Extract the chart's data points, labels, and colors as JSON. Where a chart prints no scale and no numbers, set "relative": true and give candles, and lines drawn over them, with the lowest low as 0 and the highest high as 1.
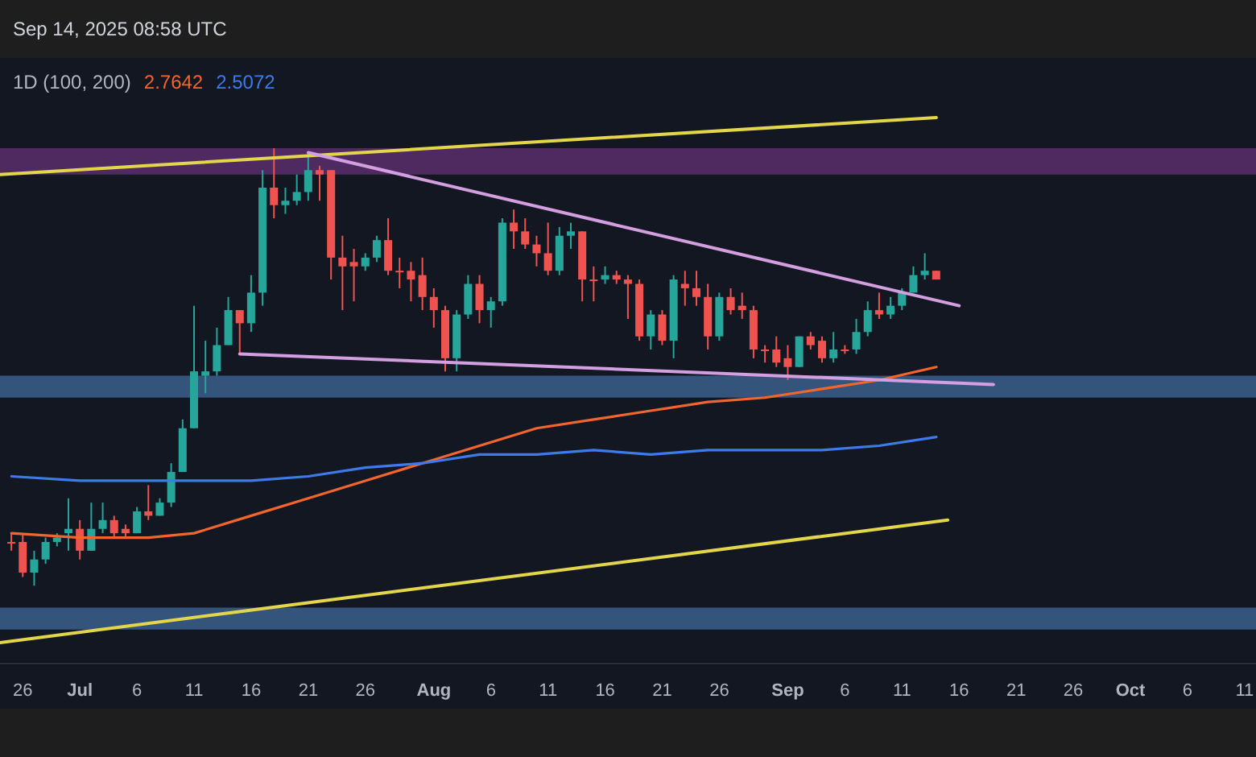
{
  "chart_data": {
    "type": "candlestick",
    "title": "Sep 14, 2025 08:58 UTC",
    "legend_title": "1D (100, 200)",
    "legend": "top left",
    "tick_labels": "x",
    "relative": true,
    "x": [
      "--06-25",
      "--06-26",
      "--06-27",
      "--06-28",
      "--06-29",
      "--06-30",
      "--07-01",
      "--07-02",
      "--07-03",
      "--07-04",
      "--07-05",
      "--07-06",
      "--07-07",
      "--07-08",
      "--07-09",
      "--07-10",
      "--07-11",
      "--07-12",
      "--07-13",
      "--07-14",
      "--07-15",
      "--07-16",
      "--07-17",
      "--07-18",
      "--07-19",
      "--07-20",
      "--07-21",
      "--07-22",
      "--07-23",
      "--07-24",
      "--07-25",
      "--07-26",
      "--07-27",
      "--07-28",
      "--07-29",
      "--07-30",
      "--07-31",
      "--08-01",
      "--08-02",
      "--08-03",
      "--08-04",
      "--08-05",
      "--08-06",
      "--08-07",
      "--08-08",
      "--08-09",
      "--08-10",
      "--08-11",
      "--08-12",
      "--08-13",
      "--08-14",
      "--08-15",
      "--08-16",
      "--08-17",
      "--08-18",
      "--08-19",
      "--08-20",
      "--08-21",
      "--08-22",
      "--08-23",
      "--08-24",
      "--08-25",
      "--08-26",
      "--08-27",
      "--08-28",
      "--08-29",
      "--08-30",
      "--08-31",
      "--09-01",
      "--09-02",
      "--09-03",
      "--09-04",
      "--09-05",
      "--09-06",
      "--09-07",
      "--09-08",
      "--09-09",
      "--09-10",
      "--09-11",
      "--09-12",
      "--09-13",
      "--09-14"
    ],
    "ohlc": [
      [
        0.1,
        0.12,
        0.08,
        0.1
      ],
      [
        0.1,
        0.12,
        0.02,
        0.03
      ],
      [
        0.03,
        0.08,
        0,
        0.06
      ],
      [
        0.06,
        0.11,
        0.05,
        0.1
      ],
      [
        0.1,
        0.12,
        0.09,
        0.11
      ],
      [
        0.12,
        0.2,
        0.08,
        0.13
      ],
      [
        0.13,
        0.15,
        0.06,
        0.08
      ],
      [
        0.08,
        0.19,
        0.08,
        0.13
      ],
      [
        0.13,
        0.19,
        0.12,
        0.15
      ],
      [
        0.15,
        0.16,
        0.11,
        0.12
      ],
      [
        0.13,
        0.14,
        0.11,
        0.12
      ],
      [
        0.12,
        0.18,
        0.12,
        0.17
      ],
      [
        0.17,
        0.23,
        0.15,
        0.16
      ],
      [
        0.16,
        0.2,
        0.16,
        0.19
      ],
      [
        0.19,
        0.28,
        0.18,
        0.26
      ],
      [
        0.26,
        0.38,
        0.26,
        0.36
      ],
      [
        0.36,
        0.64,
        0.36,
        0.49
      ],
      [
        0.48,
        0.56,
        0.44,
        0.49
      ],
      [
        0.49,
        0.59,
        0.48,
        0.55
      ],
      [
        0.55,
        0.66,
        0.55,
        0.63
      ],
      [
        0.63,
        0.63,
        0.53,
        0.6
      ],
      [
        0.6,
        0.71,
        0.58,
        0.67
      ],
      [
        0.67,
        0.95,
        0.64,
        0.91
      ],
      [
        0.91,
        1,
        0.84,
        0.87
      ],
      [
        0.87,
        0.91,
        0.85,
        0.88
      ],
      [
        0.88,
        0.94,
        0.87,
        0.9
      ],
      [
        0.9,
        0.99,
        0.88,
        0.95
      ],
      [
        0.95,
        0.96,
        0.88,
        0.94
      ],
      [
        0.95,
        0.95,
        0.7,
        0.75
      ],
      [
        0.75,
        0.8,
        0.63,
        0.73
      ],
      [
        0.74,
        0.77,
        0.65,
        0.73
      ],
      [
        0.73,
        0.76,
        0.72,
        0.75
      ],
      [
        0.75,
        0.8,
        0.74,
        0.79
      ],
      [
        0.79,
        0.84,
        0.71,
        0.72
      ],
      [
        0.72,
        0.75,
        0.68,
        0.72
      ],
      [
        0.72,
        0.74,
        0.65,
        0.7
      ],
      [
        0.71,
        0.75,
        0.63,
        0.66
      ],
      [
        0.66,
        0.68,
        0.59,
        0.63
      ],
      [
        0.63,
        0.64,
        0.49,
        0.52
      ],
      [
        0.52,
        0.63,
        0.49,
        0.62
      ],
      [
        0.62,
        0.71,
        0.61,
        0.69
      ],
      [
        0.69,
        0.71,
        0.6,
        0.63
      ],
      [
        0.63,
        0.66,
        0.59,
        0.65
      ],
      [
        0.65,
        0.84,
        0.64,
        0.83
      ],
      [
        0.83,
        0.86,
        0.77,
        0.81
      ],
      [
        0.81,
        0.84,
        0.77,
        0.78
      ],
      [
        0.78,
        0.8,
        0.73,
        0.76
      ],
      [
        0.76,
        0.83,
        0.71,
        0.72
      ],
      [
        0.72,
        0.82,
        0.71,
        0.8
      ],
      [
        0.8,
        0.83,
        0.77,
        0.81
      ],
      [
        0.81,
        0.81,
        0.65,
        0.7
      ],
      [
        0.7,
        0.73,
        0.65,
        0.7
      ],
      [
        0.7,
        0.73,
        0.69,
        0.71
      ],
      [
        0.71,
        0.72,
        0.69,
        0.7
      ],
      [
        0.7,
        0.71,
        0.61,
        0.69
      ],
      [
        0.69,
        0.7,
        0.56,
        0.57
      ],
      [
        0.57,
        0.63,
        0.54,
        0.62
      ],
      [
        0.62,
        0.63,
        0.55,
        0.56
      ],
      [
        0.56,
        0.71,
        0.52,
        0.7
      ],
      [
        0.69,
        0.72,
        0.64,
        0.68
      ],
      [
        0.68,
        0.72,
        0.64,
        0.66
      ],
      [
        0.66,
        0.69,
        0.54,
        0.57
      ],
      [
        0.57,
        0.67,
        0.56,
        0.66
      ],
      [
        0.66,
        0.68,
        0.62,
        0.63
      ],
      [
        0.64,
        0.67,
        0.61,
        0.63
      ],
      [
        0.63,
        0.64,
        0.52,
        0.54
      ],
      [
        0.54,
        0.55,
        0.51,
        0.54
      ],
      [
        0.54,
        0.57,
        0.5,
        0.51
      ],
      [
        0.52,
        0.55,
        0.47,
        0.5
      ],
      [
        0.5,
        0.57,
        0.5,
        0.57
      ],
      [
        0.57,
        0.58,
        0.54,
        0.55
      ],
      [
        0.56,
        0.57,
        0.51,
        0.52
      ],
      [
        0.52,
        0.58,
        0.51,
        0.54
      ],
      [
        0.54,
        0.55,
        0.53,
        0.54
      ],
      [
        0.54,
        0.61,
        0.53,
        0.58
      ],
      [
        0.58,
        0.65,
        0.57,
        0.63
      ],
      [
        0.63,
        0.67,
        0.61,
        0.62
      ],
      [
        0.62,
        0.66,
        0.61,
        0.64
      ],
      [
        0.64,
        0.68,
        0.63,
        0.67
      ],
      [
        0.67,
        0.73,
        0.67,
        0.71
      ],
      [
        0.71,
        0.76,
        0.7,
        0.72
      ],
      [
        0.72,
        0.72,
        0.7,
        0.7
      ]
    ],
    "colors": [
      "#ef5350",
      "#ef5350",
      "#26a69a",
      "#26a69a",
      "#26a69a",
      "#26a69a",
      "#ef5350",
      "#26a69a",
      "#26a69a",
      "#ef5350",
      "#ef5350",
      "#26a69a",
      "#ef5350",
      "#26a69a",
      "#26a69a",
      "#26a69a",
      "#26a69a",
      "#26a69a",
      "#26a69a",
      "#26a69a",
      "#ef5350",
      "#26a69a",
      "#26a69a",
      "#ef5350",
      "#26a69a",
      "#26a69a",
      "#26a69a",
      "#ef5350",
      "#ef5350",
      "#ef5350",
      "#ef5350",
      "#26a69a",
      "#26a69a",
      "#ef5350",
      "#ef5350",
      "#ef5350",
      "#ef5350",
      "#ef5350",
      "#ef5350",
      "#26a69a",
      "#26a69a",
      "#ef5350",
      "#26a69a",
      "#26a69a",
      "#ef5350",
      "#ef5350",
      "#ef5350",
      "#ef5350",
      "#26a69a",
      "#26a69a",
      "#ef5350",
      "#ef5350",
      "#26a69a",
      "#ef5350",
      "#ef5350",
      "#ef5350",
      "#26a69a",
      "#ef5350",
      "#26a69a",
      "#ef5350",
      "#ef5350",
      "#ef5350",
      "#26a69a",
      "#ef5350",
      "#ef5350",
      "#ef5350",
      "#ef5350",
      "#ef5350",
      "#ef5350",
      "#26a69a",
      "#ef5350",
      "#ef5350",
      "#26a69a",
      "#ef5350",
      "#26a69a",
      "#26a69a",
      "#ef5350",
      "#26a69a",
      "#26a69a",
      "#26a69a",
      "#26a69a",
      "#ef5350"
    ],
    "series": [
      {
        "type": "line",
        "name": "2.7642",
        "color": "#f2652d",
        "x": [
          "--06-25",
          "--07-01",
          "--07-07",
          "--07-11",
          "--07-16",
          "--07-21",
          "--07-26",
          "--07-31",
          "--08-05",
          "--08-10",
          "--08-15",
          "--08-20",
          "--08-25",
          "--08-30",
          "--09-04",
          "--09-09",
          "--09-14"
        ],
        "values": [
          0.12,
          0.11,
          0.11,
          0.12,
          0.16,
          0.2,
          0.24,
          0.28,
          0.32,
          0.36,
          0.38,
          0.4,
          0.42,
          0.43,
          0.45,
          0.47,
          0.5
        ]
      },
      {
        "type": "line",
        "name": "2.5072",
        "color": "#3d7bea",
        "x": [
          "--06-25",
          "--07-01",
          "--07-07",
          "--07-11",
          "--07-16",
          "--07-21",
          "--07-26",
          "--07-31",
          "--08-05",
          "--08-10",
          "--08-15",
          "--08-20",
          "--08-25",
          "--08-30",
          "--09-04",
          "--09-09",
          "--09-14"
        ],
        "values": [
          0.25,
          0.24,
          0.24,
          0.24,
          0.24,
          0.25,
          0.27,
          0.28,
          0.3,
          0.3,
          0.31,
          0.3,
          0.31,
          0.31,
          0.31,
          0.32,
          0.34
        ]
      },
      {
        "type": "line",
        "color": "#e3d64a",
        "x": [
          "--06-24",
          "--09-14"
        ],
        "values": [
          0.94,
          1.07
        ]
      },
      {
        "type": "line",
        "color": "#e3d64a",
        "x": [
          "--06-24",
          "--09-15"
        ],
        "values": [
          -0.13,
          0.15
        ]
      },
      {
        "type": "line",
        "color": "#d49fe0",
        "x": [
          "--07-21",
          "--09-16"
        ],
        "values": [
          0.99,
          0.64
        ]
      },
      {
        "type": "line",
        "color": "#d49fe0",
        "x": [
          "--07-15",
          "--09-19"
        ],
        "values": [
          0.53,
          0.46
        ]
      }
    ],
    "bands": [
      {
        "axis": "y",
        "from": 0.94,
        "to": 1.0,
        "color": "#5a2e6b"
      },
      {
        "axis": "y",
        "from": 0.43,
        "to": 0.48,
        "color": "#3b5f8c"
      },
      {
        "axis": "y",
        "from": -0.1,
        "to": -0.05,
        "color": "#3b5f8c"
      }
    ],
    "xlim": [
      "--06-24",
      "--10-12"
    ],
    "xticks": [
      {
        "value": "--06-26",
        "label": "26"
      },
      {
        "value": "--07-01",
        "label": "Jul"
      },
      {
        "value": "--07-06",
        "label": "6"
      },
      {
        "value": "--07-11",
        "label": "11"
      },
      {
        "value": "--07-16",
        "label": "16"
      },
      {
        "value": "--07-21",
        "label": "21"
      },
      {
        "value": "--07-26",
        "label": "26"
      },
      {
        "value": "--08-01",
        "label": "Aug"
      },
      {
        "value": "--08-06",
        "label": "6"
      },
      {
        "value": "--08-11",
        "label": "11"
      },
      {
        "value": "--08-16",
        "label": "16"
      },
      {
        "value": "--08-21",
        "label": "21"
      },
      {
        "value": "--08-26",
        "label": "26"
      },
      {
        "value": "--09-01",
        "label": "Sep"
      },
      {
        "value": "--09-06",
        "label": "6"
      },
      {
        "value": "--09-11",
        "label": "11"
      },
      {
        "value": "--09-16",
        "label": "16"
      },
      {
        "value": "--09-21",
        "label": "21"
      },
      {
        "value": "--09-26",
        "label": "26"
      },
      {
        "value": "--10-01",
        "label": "Oct"
      },
      {
        "value": "--10-06",
        "label": "6"
      },
      {
        "value": "--10-11",
        "label": "11"
      }
    ]
  }
}
